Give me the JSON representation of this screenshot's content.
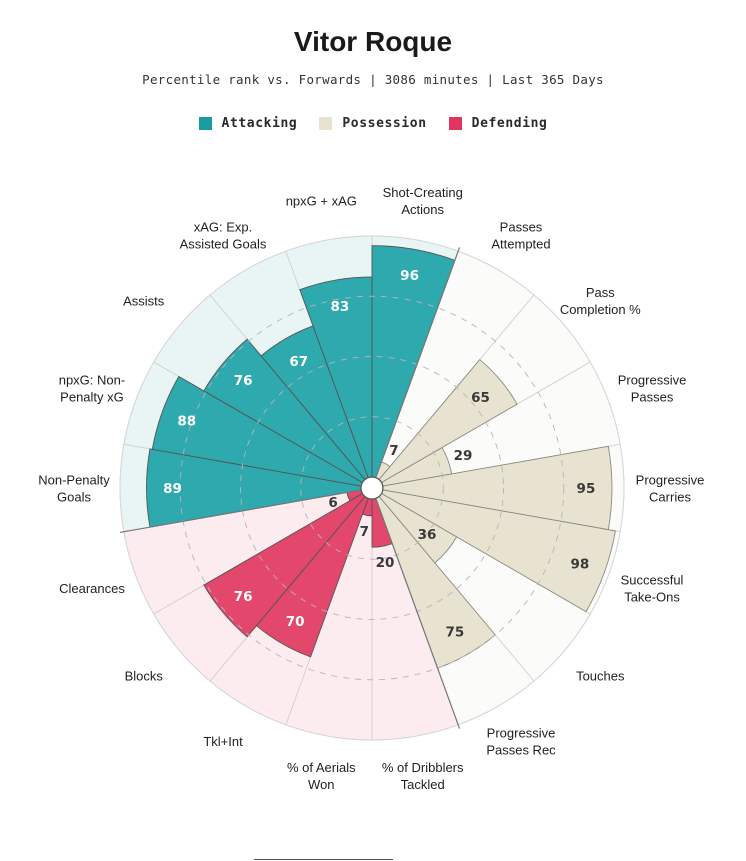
{
  "header": {
    "title": "Vitor Roque",
    "subtitle": "Percentile rank vs. Forwards | 3086 minutes | Last 365 Days"
  },
  "legend": [
    {
      "label": "Attacking",
      "color": "#1a9ba1"
    },
    {
      "label": "Possession",
      "color": "#e8e3d1"
    },
    {
      "label": "Defending",
      "color": "#e0355f"
    }
  ],
  "chart_data": {
    "type": "radar-bar",
    "title": "Vitor Roque",
    "ylim": [
      0,
      100
    ],
    "gridlines": [
      25,
      50,
      75,
      100
    ],
    "groups": {
      "Attacking": {
        "fill": "#2ea9ae",
        "background": "#e9f4f5",
        "text": "#ffffff"
      },
      "Possession": {
        "fill": "#e8e3d1",
        "background": "#fbfbf9",
        "text": "#3a3a3a"
      },
      "Defending": {
        "fill": "#e3476c",
        "background": "#fcebef",
        "text": "#ffffff"
      }
    },
    "categories": [
      {
        "label": [
          "Shot-Creating",
          "Actions"
        ],
        "value": 96,
        "group": "Attacking"
      },
      {
        "label": [
          "Passes",
          "Attempted"
        ],
        "value": 7,
        "group": "Possession"
      },
      {
        "label": [
          "Pass",
          "Completion %"
        ],
        "value": 65,
        "group": "Possession"
      },
      {
        "label": [
          "Progressive",
          "Passes"
        ],
        "value": 29,
        "group": "Possession"
      },
      {
        "label": [
          "Progressive",
          "Carries"
        ],
        "value": 95,
        "group": "Possession"
      },
      {
        "label": [
          "Successful",
          "Take-Ons"
        ],
        "value": 98,
        "group": "Possession"
      },
      {
        "label": [
          "Touches"
        ],
        "value": 36,
        "group": "Possession"
      },
      {
        "label": [
          "Progressive",
          "Passes Rec"
        ],
        "value": 75,
        "group": "Possession"
      },
      {
        "label": [
          "% of Dribblers",
          "Tackled"
        ],
        "value": 20,
        "group": "Defending"
      },
      {
        "label": [
          "% of Aerials",
          "Won"
        ],
        "value": 7,
        "group": "Defending"
      },
      {
        "label": [
          "Tkl+Int"
        ],
        "value": 70,
        "group": "Defending"
      },
      {
        "label": [
          "Blocks"
        ],
        "value": 76,
        "group": "Defending"
      },
      {
        "label": [
          "Clearances"
        ],
        "value": 6,
        "group": "Defending"
      },
      {
        "label": [
          "Non-Penalty",
          "Goals"
        ],
        "value": 89,
        "group": "Attacking"
      },
      {
        "label": [
          "npxG: Non-",
          "Penalty xG"
        ],
        "value": 88,
        "group": "Attacking"
      },
      {
        "label": [
          "Assists"
        ],
        "value": 76,
        "group": "Attacking"
      },
      {
        "label": [
          "xAG: Exp.",
          "Assisted Goals"
        ],
        "value": 67,
        "group": "Attacking"
      },
      {
        "label": [
          "npxG + xAG"
        ],
        "value": 83,
        "group": "Attacking"
      }
    ]
  }
}
